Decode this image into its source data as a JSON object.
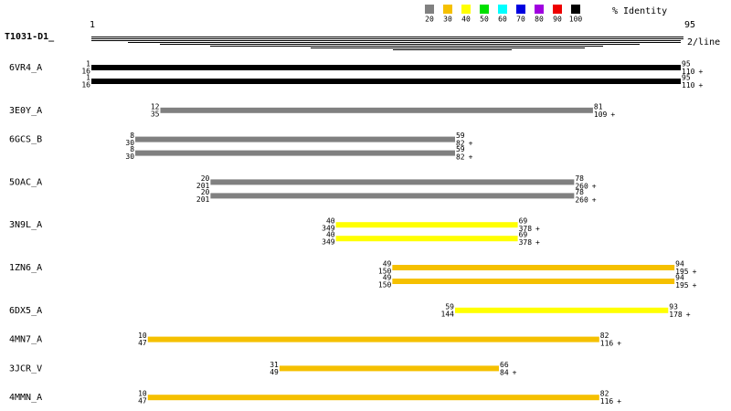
{
  "query": {
    "name": "T1031-D1_",
    "start": 1,
    "end": 95,
    "per_line": "2/line"
  },
  "legend": {
    "title": "% Identity",
    "items": [
      {
        "label": "20",
        "color": "#808080"
      },
      {
        "label": "30",
        "color": "#f5c000"
      },
      {
        "label": "40",
        "color": "#ffff00"
      },
      {
        "label": "50",
        "color": "#00e000"
      },
      {
        "label": "60",
        "color": "#00ffff"
      },
      {
        "label": "70",
        "color": "#0000e0"
      },
      {
        "label": "80",
        "color": "#a000e0"
      },
      {
        "label": "90",
        "color": "#ee0000"
      },
      {
        "label": "100",
        "color": "#000000"
      }
    ]
  },
  "hits": [
    {
      "name": "6VR4_A",
      "color": "#000000",
      "rows": [
        {
          "q_start": 1,
          "s_start": 16,
          "q_end": 95,
          "s_end": 110,
          "strand": "+"
        },
        {
          "q_start": 1,
          "s_start": 16,
          "q_end": 95,
          "s_end": 110,
          "strand": "+"
        }
      ]
    },
    {
      "name": "3E0Y_A",
      "color": "#808080",
      "rows": [
        {
          "q_start": 12,
          "s_start": 35,
          "q_end": 81,
          "s_end": 109,
          "strand": "+"
        }
      ]
    },
    {
      "name": "6GCS_B",
      "color": "#808080",
      "rows": [
        {
          "q_start": 8,
          "s_start": 30,
          "q_end": 59,
          "s_end": 82,
          "strand": "+"
        },
        {
          "q_start": 8,
          "s_start": 30,
          "q_end": 59,
          "s_end": 82,
          "strand": "+"
        }
      ]
    },
    {
      "name": "5OAC_A",
      "color": "#808080",
      "rows": [
        {
          "q_start": 20,
          "s_start": 201,
          "q_end": 78,
          "s_end": 260,
          "strand": "+"
        },
        {
          "q_start": 20,
          "s_start": 201,
          "q_end": 78,
          "s_end": 260,
          "strand": "+"
        }
      ]
    },
    {
      "name": "3N9L_A",
      "color": "#ffff00",
      "rows": [
        {
          "q_start": 40,
          "s_start": 349,
          "q_end": 69,
          "s_end": 378,
          "strand": "+"
        },
        {
          "q_start": 40,
          "s_start": 349,
          "q_end": 69,
          "s_end": 378,
          "strand": "+"
        }
      ]
    },
    {
      "name": "1ZN6_A",
      "color": "#f5c000",
      "rows": [
        {
          "q_start": 49,
          "s_start": 150,
          "q_end": 94,
          "s_end": 195,
          "strand": "+"
        },
        {
          "q_start": 49,
          "s_start": 150,
          "q_end": 94,
          "s_end": 195,
          "strand": "+"
        }
      ]
    },
    {
      "name": "6DX5_A",
      "color": "#ffff00",
      "rows": [
        {
          "q_start": 59,
          "s_start": 144,
          "q_end": 93,
          "s_end": 178,
          "strand": "+"
        }
      ]
    },
    {
      "name": "4MN7_A",
      "color": "#f5c000",
      "rows": [
        {
          "q_start": 10,
          "s_start": 47,
          "q_end": 82,
          "s_end": 116,
          "strand": "+"
        }
      ]
    },
    {
      "name": "3JCR_V",
      "color": "#f5c000",
      "rows": [
        {
          "q_start": 31,
          "s_start": 49,
          "q_end": 66,
          "s_end": 84,
          "strand": "+"
        }
      ]
    },
    {
      "name": "4MMN_A",
      "color": "#f5c000",
      "rows": [
        {
          "q_start": 10,
          "s_start": 47,
          "q_end": 82,
          "s_end": 116,
          "strand": "+"
        }
      ]
    }
  ]
}
